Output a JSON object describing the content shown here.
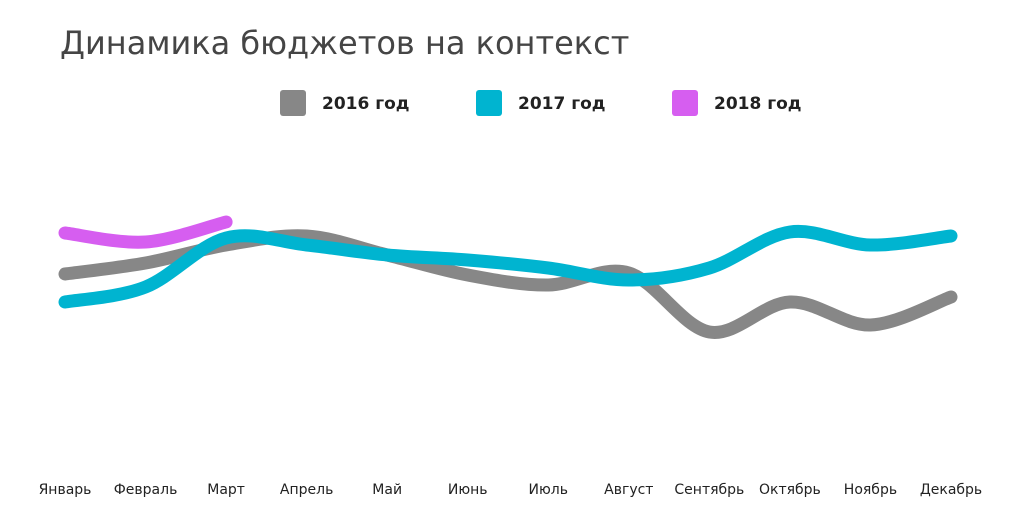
{
  "chart_data": {
    "type": "line",
    "title": "Динамика бюджетов на контекст",
    "categories": [
      "Январь",
      "Февраль",
      "Март",
      "Апрель",
      "Май",
      "Июнь",
      "Июль",
      "Август",
      "Сентябрь",
      "Октябрь",
      "Ноябрь",
      "Декабрь"
    ],
    "series": [
      {
        "name": "2016 год",
        "color": "#878787",
        "values": [
          186,
          197,
          215,
          224,
          205,
          185,
          175,
          187,
          128,
          158,
          135,
          163
        ]
      },
      {
        "name": "2017 год",
        "color": "#00b4d0",
        "values": [
          158,
          173,
          222,
          215,
          205,
          200,
          192,
          180,
          192,
          228,
          215,
          224
        ]
      },
      {
        "name": "2018 год",
        "color": "#d65ef0",
        "values": [
          227,
          218,
          238,
          null,
          null,
          null,
          null,
          null,
          null,
          null,
          null,
          null
        ]
      }
    ],
    "ylim": [
      0,
      320
    ],
    "grid": false
  }
}
